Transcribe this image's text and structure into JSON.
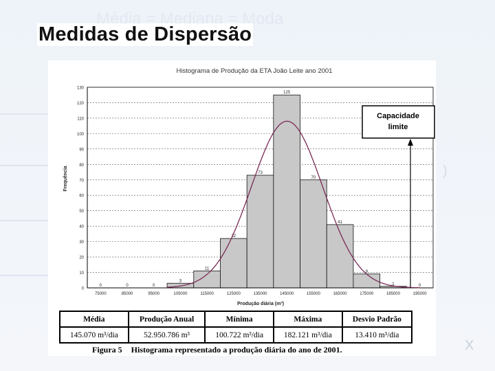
{
  "slide": {
    "title": "Medidas de Dispersão",
    "ghost_title": "Média = Mediana = Moda",
    "ghost_x": "X",
    "ghost_paren": ")"
  },
  "chart_data": {
    "type": "bar",
    "title": "Histograma de Produção da ETA João Leite ano 2001",
    "xlabel": "Produção diária (m³)",
    "ylabel": "Frequência",
    "categories": [
      "75000",
      "85000",
      "95000",
      "105000",
      "115000",
      "125000",
      "135000",
      "145000",
      "155000",
      "165000",
      "175000",
      "185000",
      "195000"
    ],
    "values": [
      0,
      0,
      0,
      3,
      11,
      32,
      73,
      125,
      70,
      41,
      9,
      1,
      0
    ],
    "data_labels": [
      "0",
      "0",
      "0",
      "3",
      "11",
      "32",
      "73",
      "125",
      "70",
      "41",
      "9",
      "1",
      "0"
    ],
    "ylim": [
      0,
      130
    ],
    "yticks": [
      0,
      10,
      20,
      30,
      40,
      50,
      60,
      70,
      80,
      90,
      100,
      110,
      120,
      130
    ],
    "grid": true,
    "curve": {
      "type": "normal",
      "mean": 145070,
      "std": 13410,
      "peak": 108
    },
    "annotation": {
      "text_line1": "Capacidade",
      "text_line2": "limite",
      "x": 195000
    },
    "colors": {
      "bar": "#c8c8c8",
      "curve": "#7a2a55",
      "grid": "#555555"
    }
  },
  "table": {
    "headers": [
      "Média",
      "Produção Anual",
      "Mínima",
      "Máxima",
      "Desvio Padrão"
    ],
    "values": [
      "145.070 m³/dia",
      "52.950.786 m³",
      "100.722 m³/dia",
      "182.121 m³/dia",
      "13.410 m³/dia"
    ]
  },
  "caption": {
    "label": "Figura 5",
    "text": "Histograma representado a produção diária do ano de 2001."
  }
}
